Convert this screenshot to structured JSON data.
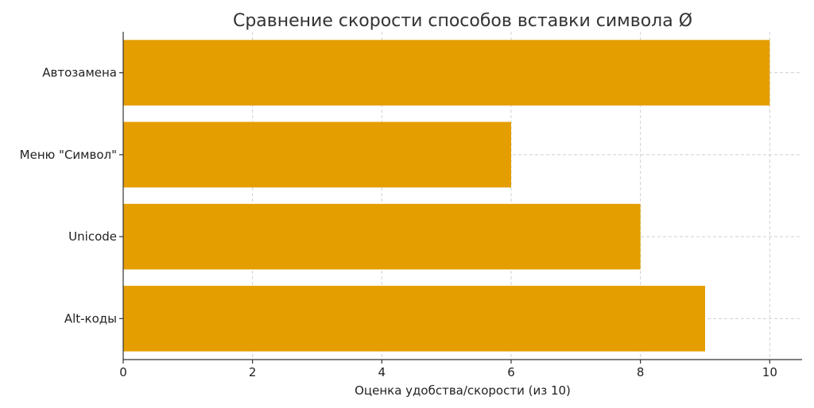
{
  "chart_data": {
    "type": "bar",
    "orientation": "horizontal",
    "title": "Сравнение скорости способов вставки символа Ø",
    "xlabel": "Оценка удобства/скорости (из 10)",
    "ylabel": "",
    "categories": [
      "Автозамена",
      "Меню \"Символ\"",
      "Unicode",
      "Alt-коды"
    ],
    "values": [
      10,
      6,
      8,
      9
    ],
    "xlim": [
      0,
      10.5
    ],
    "xticks": [
      "0",
      "2",
      "4",
      "6",
      "8",
      "10"
    ],
    "grid": true,
    "bar_color": "#E49E00"
  }
}
